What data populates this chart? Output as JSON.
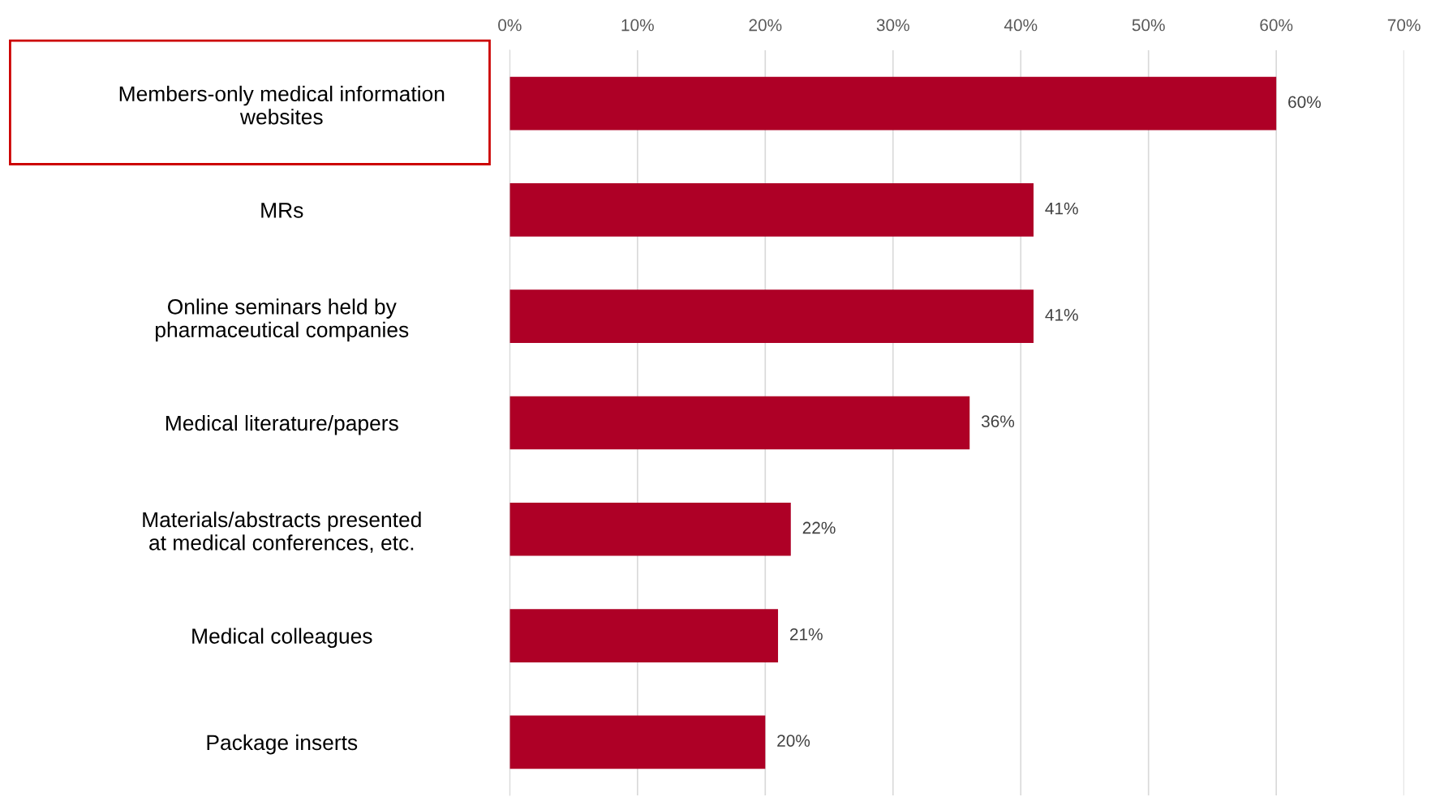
{
  "chart_data": {
    "type": "bar",
    "orientation": "horizontal",
    "categories": [
      "Members-only medical information\nwebsites",
      "MRs",
      "Online seminars held by\npharmaceutical companies",
      "Medical literature/papers",
      "Materials/abstracts presented\nat medical conferences, etc.",
      "Medical colleagues",
      "Package inserts"
    ],
    "values": [
      60,
      41,
      41,
      36,
      22,
      21,
      20
    ],
    "value_labels": [
      "60%",
      "41%",
      "41%",
      "36%",
      "22%",
      "21%",
      "20%"
    ],
    "color": "#ae0026",
    "xlim": [
      0,
      70
    ],
    "xticks": [
      {
        "value": 0,
        "label": "0%"
      },
      {
        "value": 10,
        "label": "10%"
      },
      {
        "value": 20,
        "label": "20%"
      },
      {
        "value": 30,
        "label": "30%"
      },
      {
        "value": 40,
        "label": "40%"
      },
      {
        "value": 50,
        "label": "50%"
      },
      {
        "value": 60,
        "label": "60%"
      },
      {
        "value": 70,
        "label": "70%"
      }
    ],
    "grid": "x",
    "legend": false
  }
}
